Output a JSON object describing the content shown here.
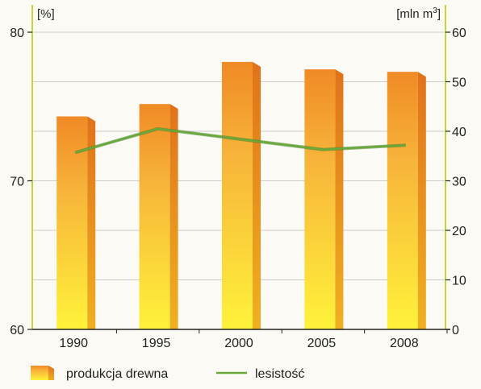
{
  "chart_data": {
    "type": "bar",
    "categories": [
      "1990",
      "1995",
      "2000",
      "2005",
      "2008"
    ],
    "series": [
      {
        "name": "produkcja drewna",
        "type": "bar",
        "axis": "right",
        "values": [
          43.0,
          45.5,
          54.0,
          52.5,
          52.0
        ]
      },
      {
        "name": "lesistość",
        "type": "line",
        "axis": "left",
        "values": [
          71.9,
          73.5,
          72.8,
          72.1,
          72.4
        ]
      }
    ],
    "left_axis": {
      "unit": "[%]",
      "ylim": [
        60,
        80
      ],
      "ticks": [
        "60",
        "70",
        "80"
      ]
    },
    "right_axis": {
      "unit_prefix": "[mln m",
      "unit_sup": "3",
      "unit_suffix": "]",
      "ylim": [
        0,
        60
      ],
      "ticks": [
        "0",
        "10",
        "20",
        "30",
        "40",
        "50",
        "60"
      ]
    },
    "grid": true,
    "legend_position": "bottom",
    "colors": {
      "bar_top": "#f08a25",
      "bar_bottom": "#fff23a",
      "bar_side": "#e0721a",
      "line": "#6aa83a",
      "axis": "#c8d43a",
      "grid": "#bdbdbd"
    }
  }
}
